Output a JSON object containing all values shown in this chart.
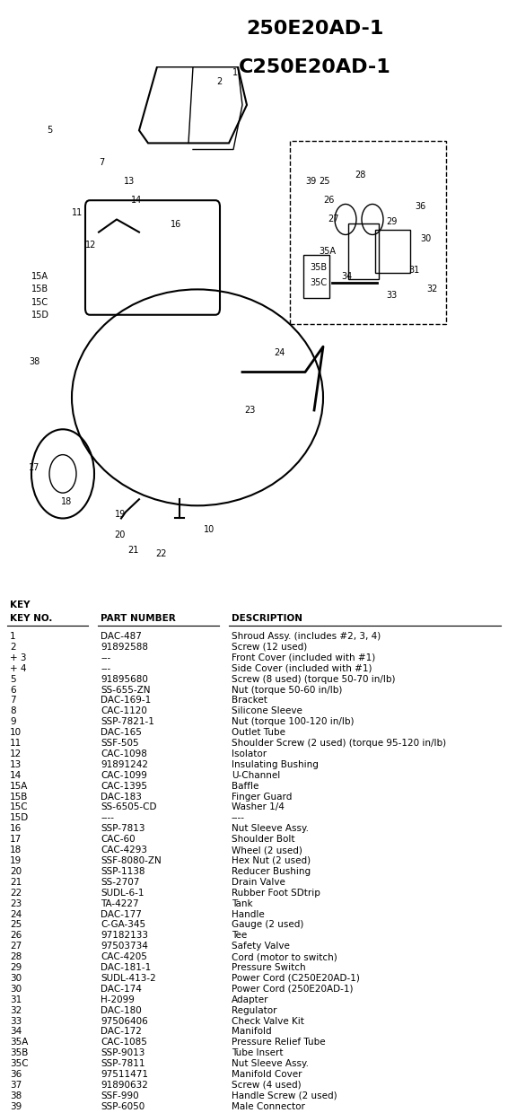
{
  "title1": "250E20AD-1",
  "title2": "C250E20AD-1",
  "bg_color": "#ffffff",
  "col_headers": [
    "KEY\nNO.",
    "PART NUMBER",
    "DESCRIPTION"
  ],
  "rows": [
    [
      "1",
      "DAC-487",
      "Shroud Assy. (includes #2, 3, 4)"
    ],
    [
      "2",
      "91892588",
      "Screw (12 used)"
    ],
    [
      "+ 3",
      "---",
      "Front Cover (included with #1)"
    ],
    [
      "+ 4",
      "---",
      "Side Cover (included with #1)"
    ],
    [
      "5",
      "91895680",
      "Screw (8 used) (torque 50-70 in/lb)"
    ],
    [
      "6",
      "SS-655-ZN",
      "Nut (torque 50-60 in/lb)"
    ],
    [
      "7",
      "DAC-169-1",
      "Bracket"
    ],
    [
      "8",
      "CAC-1120",
      "Silicone Sleeve"
    ],
    [
      "9",
      "SSP-7821-1",
      "Nut (torque 100-120 in/lb)"
    ],
    [
      "10",
      "DAC-165",
      "Outlet Tube"
    ],
    [
      "11",
      "SSF-505",
      "Shoulder Screw (2 used) (torque 95-120 in/lb)"
    ],
    [
      "12",
      "CAC-1098",
      "Isolator"
    ],
    [
      "13",
      "91891242",
      "Insulating Bushing"
    ],
    [
      "14",
      "CAC-1099",
      "U-Channel"
    ],
    [
      "15A",
      "CAC-1395",
      "Baffle"
    ],
    [
      "15B",
      "DAC-183",
      "Finger Guard"
    ],
    [
      "15C",
      "SS-6505-CD",
      "Washer 1/4"
    ],
    [
      "15D",
      "----",
      "----"
    ],
    [
      "16",
      "SSP-7813",
      "Nut Sleeve Assy."
    ],
    [
      "17",
      "CAC-60",
      "Shoulder Bolt"
    ],
    [
      "18",
      "CAC-4293",
      "Wheel (2 used)"
    ],
    [
      "19",
      "SSF-8080-ZN",
      "Hex Nut (2 used)"
    ],
    [
      "20",
      "SSP-1138",
      "Reducer Bushing"
    ],
    [
      "21",
      "SS-2707",
      "Drain Valve"
    ],
    [
      "22",
      "SUDL-6-1",
      "Rubber Foot SDtrip"
    ],
    [
      "23",
      "TA-4227",
      "Tank"
    ],
    [
      "24",
      "DAC-177",
      "Handle"
    ],
    [
      "25",
      "C-GA-345",
      "Gauge (2 used)"
    ],
    [
      "26",
      "97182133",
      "Tee"
    ],
    [
      "27",
      "97503734",
      "Safety Valve"
    ],
    [
      "28",
      "CAC-4205",
      "Cord (motor to switch)"
    ],
    [
      "29",
      "DAC-181-1",
      "Pressure Switch"
    ],
    [
      "30",
      "SUDL-413-2",
      "Power Cord (C250E20AD-1)"
    ],
    [
      "30",
      "DAC-174",
      "Power Cord (250E20AD-1)"
    ],
    [
      "31",
      "H-2099",
      "Adapter"
    ],
    [
      "32",
      "DAC-180",
      "Regulator"
    ],
    [
      "33",
      "97506406",
      "Check Valve Kit"
    ],
    [
      "34",
      "DAC-172",
      "Manifold"
    ],
    [
      "35A",
      "CAC-1085",
      "Pressure Relief Tube"
    ],
    [
      "35B",
      "SSP-9013",
      "Tube Insert"
    ],
    [
      "35C",
      "SSP-7811",
      "Nut Sleeve Assy."
    ],
    [
      "36",
      "97511471",
      "Manifold Cover"
    ],
    [
      "37",
      "91890632",
      "Screw (4 used)"
    ],
    [
      "38",
      "SSF-990",
      "Handle Screw (2 used)"
    ],
    [
      "39",
      "SSP-6050",
      "Male Connector"
    ]
  ]
}
